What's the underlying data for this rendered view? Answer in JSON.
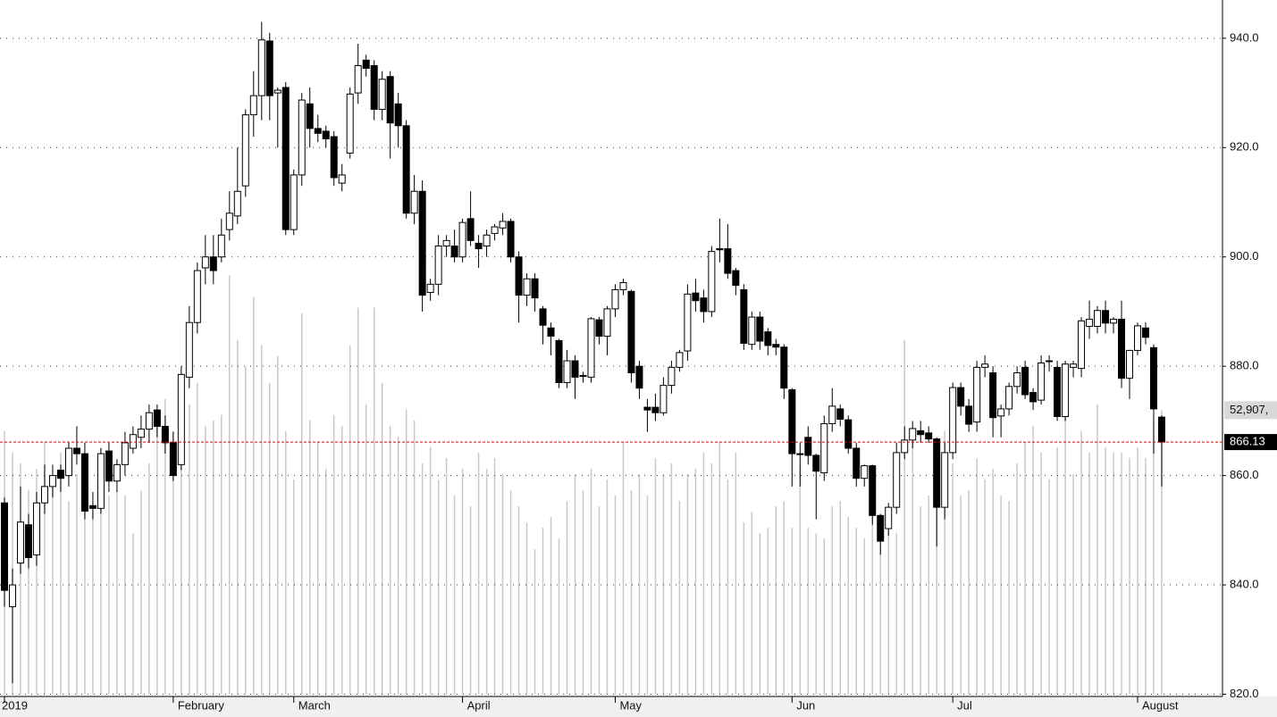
{
  "chart_data": {
    "type": "candlestick",
    "categories": [
      "2019",
      null,
      null,
      null,
      null,
      null,
      null,
      null,
      null,
      null,
      null,
      null,
      null,
      null,
      null,
      null,
      null,
      null,
      null,
      null,
      null,
      "February",
      null,
      null,
      null,
      null,
      null,
      null,
      null,
      null,
      null,
      null,
      null,
      null,
      null,
      null,
      "March",
      null,
      null,
      null,
      null,
      null,
      null,
      null,
      null,
      null,
      null,
      null,
      null,
      null,
      null,
      null,
      null,
      null,
      null,
      null,
      null,
      "April",
      null,
      null,
      null,
      null,
      null,
      null,
      null,
      null,
      null,
      null,
      null,
      null,
      null,
      null,
      null,
      null,
      null,
      null,
      "May",
      null,
      null,
      null,
      null,
      null,
      null,
      null,
      null,
      null,
      null,
      null,
      null,
      null,
      null,
      null,
      null,
      null,
      null,
      null,
      null,
      null,
      "Jun",
      null,
      null,
      null,
      null,
      null,
      null,
      null,
      null,
      null,
      null,
      null,
      null,
      null,
      null,
      null,
      null,
      null,
      null,
      null,
      "Jul",
      null,
      null,
      null,
      null,
      null,
      null,
      null,
      null,
      null,
      null,
      null,
      null,
      null,
      null,
      null,
      null,
      null,
      null,
      null,
      null,
      null,
      null,
      "August",
      null,
      null,
      null
    ],
    "open": [
      855,
      836,
      844,
      851,
      845.5,
      855,
      858,
      861,
      860,
      865,
      864,
      854.5,
      854,
      864.5,
      859,
      862,
      865,
      867,
      868.5,
      872,
      869,
      866,
      862,
      878,
      888,
      898,
      900,
      900,
      905,
      907.5,
      913,
      926,
      929.5,
      939.5,
      930,
      931,
      905,
      915,
      928,
      923.5,
      923,
      922,
      913.5,
      919,
      930,
      936,
      935,
      927,
      933,
      928,
      924,
      908,
      912,
      893.5,
      895,
      902,
      902,
      900,
      907,
      902.5,
      902,
      904.3,
      905.3,
      906.5,
      900,
      893,
      896,
      890.5,
      887,
      884.7,
      877,
      881,
      878.3,
      878,
      888.5,
      885.5,
      890.5,
      894,
      893.7,
      880,
      872.5,
      872.5,
      871.5,
      876.5,
      879.8,
      882.8,
      893.4,
      892.5,
      890,
      901.5,
      901.5,
      897.5,
      894,
      884,
      889,
      886.3,
      884,
      883.5,
      875.7,
      864,
      867,
      863.7,
      860.5,
      869.5,
      872.2,
      870.2,
      865,
      859.5,
      861.8,
      852.7,
      850.3,
      854.2,
      864.2,
      866.5,
      868.2,
      867.8,
      866.7,
      854.2,
      864.2,
      876.1,
      872.7,
      869.8,
      879.8,
      878.8,
      870.9,
      872.2,
      876.3,
      879.8,
      875.2,
      873.8,
      880.9,
      879.8,
      870.8,
      879.8,
      879.6,
      887.3,
      887.3,
      890.2,
      887.9,
      888.6,
      877.8,
      882.9,
      887,
      883.4,
      870.7
    ],
    "close": [
      839,
      840,
      851.5,
      845,
      855,
      858,
      860,
      859.5,
      865,
      864,
      853.5,
      854,
      864,
      859,
      862,
      866,
      867.5,
      868.5,
      871.5,
      869,
      866,
      860,
      878.5,
      888,
      897.5,
      900,
      897.5,
      904,
      908,
      912,
      926,
      929.5,
      939.7,
      929.5,
      930.5,
      905,
      915,
      928.7,
      923.5,
      922.6,
      921.6,
      914.5,
      915,
      929.8,
      935,
      934.5,
      927,
      932.5,
      924.5,
      924,
      908,
      912,
      893,
      895,
      902,
      903,
      900,
      906.3,
      903,
      901.5,
      904,
      905.5,
      906.5,
      900,
      893,
      896,
      892.5,
      887.5,
      885.5,
      877,
      881,
      878,
      878.2,
      888.7,
      885.5,
      890.5,
      894,
      895.3,
      878.8,
      876,
      872,
      871.5,
      876.5,
      879.8,
      882.5,
      893.2,
      892,
      890,
      901,
      901.3,
      897,
      894.8,
      884.2,
      889,
      884.6,
      883.8,
      883.5,
      876,
      864,
      864,
      863.7,
      860.8,
      869.5,
      872.7,
      870.3,
      865,
      859.5,
      861.8,
      852.7,
      848,
      854.2,
      864.2,
      866.5,
      868.6,
      867.5,
      866.7,
      854.2,
      864.2,
      876.1,
      872.7,
      869.4,
      879.8,
      880.4,
      870.6,
      872.2,
      876.3,
      878.8,
      874.8,
      873.5,
      880.6,
      881,
      870.8,
      880.4,
      880.4,
      888.3,
      888.6,
      890.2,
      887.9,
      888.6,
      877.8,
      882.9,
      887.4,
      885.3,
      872.2,
      866.13
    ],
    "high": [
      856,
      843,
      858,
      853,
      857,
      862,
      862,
      862,
      866,
      869,
      866,
      857,
      865,
      866,
      863,
      868,
      869,
      871,
      873,
      873,
      871,
      868,
      880,
      891,
      899,
      904,
      904,
      907,
      912,
      920,
      927,
      934,
      943,
      941,
      931,
      932,
      916,
      930,
      931,
      926,
      924,
      923,
      917,
      931,
      939,
      937,
      936,
      934,
      934,
      930,
      925,
      915,
      914,
      896,
      904,
      904,
      905,
      907,
      912,
      904,
      905,
      906,
      908,
      907,
      901,
      897,
      897,
      891,
      888,
      885,
      883,
      882,
      879,
      889,
      889,
      891,
      895,
      896,
      894,
      881,
      874,
      875,
      878,
      881,
      883,
      895,
      896,
      894,
      902,
      907,
      906,
      898,
      895,
      890,
      890,
      887,
      885,
      884,
      876,
      866,
      869,
      864,
      871,
      876,
      873,
      871,
      866,
      862,
      862,
      853,
      855,
      866,
      869,
      870,
      870,
      869,
      867,
      866,
      877,
      877,
      874,
      881,
      882,
      880,
      873,
      877,
      880,
      881,
      876,
      882,
      882,
      881,
      881,
      881,
      889,
      892,
      891,
      892,
      889,
      892,
      883,
      888,
      888,
      884,
      871
    ],
    "low": [
      836,
      822,
      842,
      843,
      843.5,
      853,
      856,
      857,
      858,
      862,
      852,
      852,
      853,
      857,
      857,
      860,
      864,
      865,
      866,
      867,
      864,
      859,
      861,
      876,
      886,
      895,
      895,
      899,
      903,
      906,
      911,
      922,
      925,
      925,
      920,
      904,
      904,
      913,
      920,
      921,
      920,
      913,
      912,
      918,
      928,
      933,
      925,
      925,
      918,
      920,
      907,
      906,
      890,
      892,
      893,
      900,
      899,
      899,
      902,
      898,
      900,
      903,
      904,
      899,
      888,
      891,
      890,
      884,
      882,
      876,
      876,
      874,
      877,
      877,
      884,
      882,
      889,
      893,
      877,
      874,
      868,
      870,
      871,
      875,
      879,
      881,
      890,
      888,
      889,
      899,
      896,
      893,
      883,
      883,
      883,
      882,
      882,
      874,
      858,
      858,
      862,
      852,
      859,
      868,
      869,
      864,
      858,
      858,
      851,
      845.5,
      849,
      853,
      863,
      865,
      866,
      866,
      847,
      852,
      863,
      871,
      868,
      868,
      878,
      867,
      867,
      871,
      875,
      874,
      872,
      873,
      879,
      870,
      870,
      878,
      878,
      885,
      886,
      886,
      886,
      876,
      874,
      882,
      884,
      864,
      858
    ],
    "volume": [
      49000,
      45000,
      43000,
      38000,
      42000,
      47000,
      40000,
      45000,
      36000,
      41000,
      38000,
      34000,
      46000,
      37000,
      38000,
      37000,
      30000,
      38000,
      43000,
      50000,
      55000,
      49000,
      50000,
      54000,
      58000,
      50000,
      51000,
      52000,
      78000,
      66000,
      61000,
      74000,
      65000,
      58000,
      63000,
      49000,
      40000,
      71000,
      51000,
      47000,
      42000,
      52000,
      50000,
      65000,
      72000,
      54000,
      72000,
      58000,
      50000,
      48000,
      53000,
      51000,
      43000,
      46000,
      40000,
      44000,
      37000,
      42000,
      35000,
      45000,
      42000,
      44000,
      41000,
      38000,
      35000,
      32000,
      27000,
      31000,
      33000,
      29000,
      36000,
      41000,
      38000,
      42000,
      35000,
      40000,
      37000,
      47000,
      38000,
      41000,
      37000,
      44000,
      41000,
      43000,
      36000,
      41000,
      42000,
      45000,
      43000,
      47000,
      40000,
      45000,
      32000,
      34000,
      30000,
      31000,
      35000,
      36000,
      31000,
      43000,
      31000,
      30000,
      29000,
      35000,
      36000,
      33000,
      31000,
      29000,
      33000,
      33000,
      35000,
      30000,
      66000,
      47000,
      35000,
      37000,
      39000,
      49000,
      43000,
      37000,
      38000,
      44000,
      40000,
      42000,
      37000,
      36000,
      43000,
      47000,
      50000,
      45000,
      40000,
      46000,
      53000,
      41000,
      49000,
      45000,
      54000,
      46000,
      45000,
      45000,
      44000,
      46000,
      44000,
      51000,
      52907
    ],
    "last_volume_label": "52,907,",
    "ylim": [
      820,
      947
    ],
    "yticks": [
      {
        "value": 820,
        "label": "820.0"
      },
      {
        "value": 840,
        "label": "840.0"
      },
      {
        "value": 860,
        "label": "860.0"
      },
      {
        "value": 880,
        "label": "880.0"
      },
      {
        "value": 900,
        "label": "900.0"
      },
      {
        "value": 920,
        "label": "920.0"
      },
      {
        "value": 940,
        "label": "940.0"
      }
    ],
    "grid": true,
    "up_color": "#ffffff",
    "down_color": "#000000",
    "volume_color": "#c8c8c8",
    "last_price_line_color": "#e00000"
  }
}
